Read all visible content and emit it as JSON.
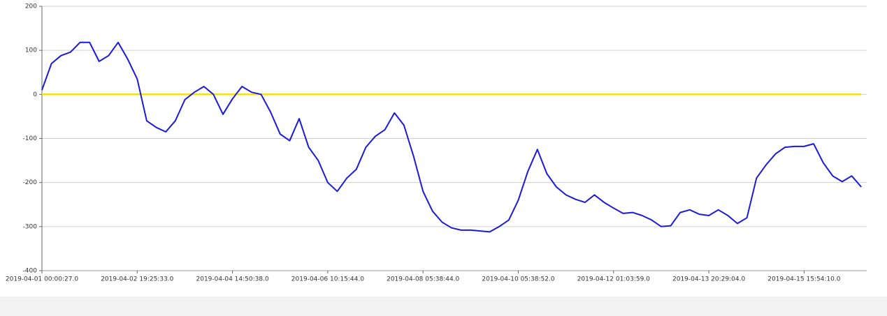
{
  "chart_data": {
    "type": "line",
    "categories": [
      "2019-04-01 00:00:27.0",
      null,
      null,
      null,
      null,
      null,
      null,
      null,
      null,
      null,
      "2019-04-02 19:25:33.0",
      null,
      null,
      null,
      null,
      null,
      null,
      null,
      null,
      null,
      "2019-04-04 14:50:38.0",
      null,
      null,
      null,
      null,
      null,
      null,
      null,
      null,
      null,
      "2019-04-06 10:15:44.0",
      null,
      null,
      null,
      null,
      null,
      null,
      null,
      null,
      null,
      "2019-04-08 05:38:44.0",
      null,
      null,
      null,
      null,
      null,
      null,
      null,
      null,
      null,
      "2019-04-10 05:38:52.0",
      null,
      null,
      null,
      null,
      null,
      null,
      null,
      null,
      null,
      "2019-04-12 01:03:59.0",
      null,
      null,
      null,
      null,
      null,
      null,
      null,
      null,
      null,
      "2019-04-13 20:29:04.0",
      null,
      null,
      null,
      null,
      null,
      null,
      null,
      null,
      null,
      "2019-04-15 15:54:10.0",
      null,
      null,
      null,
      null,
      null,
      null
    ],
    "series": [
      {
        "color": "#1a1adb",
        "values": [
          10,
          70,
          88,
          96,
          118,
          118,
          75,
          88,
          118,
          80,
          35,
          -60,
          -75,
          -85,
          -60,
          -12,
          5,
          18,
          0,
          -45,
          -10,
          18,
          5,
          0,
          -40,
          -90,
          -105,
          -55,
          -120,
          -150,
          -200,
          -220,
          -190,
          -170,
          -120,
          -95,
          -80,
          -42,
          -70,
          -140,
          -220,
          -265,
          -290,
          -303,
          -308,
          -308,
          -310,
          -312,
          -300,
          -285,
          -240,
          -175,
          -125,
          -180,
          -210,
          -228,
          -238,
          -245,
          -228,
          -245,
          -258,
          -270,
          -268,
          -275,
          -285,
          -300,
          -298,
          -268,
          -262,
          -272,
          -275,
          -262,
          -275,
          -293,
          -280,
          -190,
          -160,
          -135,
          -120,
          -118,
          -118,
          -112,
          -155,
          -185,
          -198,
          -185,
          -210
        ]
      },
      {
        "color": "#f2e01b",
        "values": [
          0,
          0,
          0,
          0,
          0,
          0,
          0,
          0,
          0,
          0,
          0,
          0,
          0,
          0,
          0,
          0,
          0,
          0,
          0,
          0,
          0,
          0,
          0,
          0,
          0,
          0,
          0,
          0,
          0,
          0,
          0,
          0,
          0,
          0,
          0,
          0,
          0,
          0,
          0,
          0,
          0,
          0,
          0,
          0,
          0,
          0,
          0,
          0,
          0,
          0,
          0,
          0,
          0,
          0,
          0,
          0,
          0,
          0,
          0,
          0,
          0,
          0,
          0,
          0,
          0,
          0,
          0,
          0,
          0,
          0,
          0,
          0,
          0,
          0,
          0,
          0,
          0,
          0,
          0,
          0,
          0,
          0,
          0,
          0,
          0,
          0,
          0
        ]
      }
    ],
    "ylim": [
      -400,
      200
    ],
    "yticks": [
      -400,
      -300,
      -200,
      -100,
      0,
      100,
      200
    ],
    "grid": true
  }
}
